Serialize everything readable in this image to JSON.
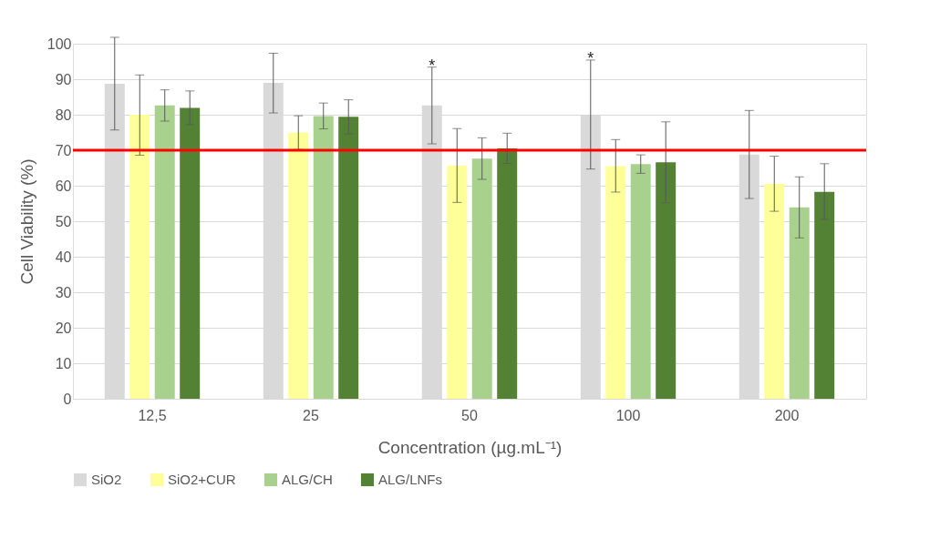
{
  "chart_data": {
    "type": "bar",
    "xlabel": "Concentration (µg.mL⁻¹)",
    "ylabel": "Cell Viability (%)",
    "categories": [
      "12,5",
      "25",
      "50",
      "100",
      "200"
    ],
    "series": [
      {
        "name": "SiO2",
        "color": "#d9d9d9",
        "values": [
          88.7,
          89,
          82.6,
          80,
          68.8
        ],
        "value_labels": [
          null,
          null,
          "*",
          "*",
          null
        ],
        "errors": [
          [
            75.7,
            101.8
          ],
          [
            80.5,
            97.3
          ],
          [
            71.8,
            93.4
          ],
          [
            64.7,
            95.4
          ],
          [
            56.4,
            81.2
          ]
        ]
      },
      {
        "name": "SiO2+CUR",
        "color": "#ffff99",
        "values": [
          80,
          75,
          65.7,
          65.5,
          60.5
        ],
        "errors": [
          [
            68.6,
            91.2
          ],
          [
            70.2,
            79.7
          ],
          [
            55.3,
            76.1
          ],
          [
            58.2,
            73
          ],
          [
            52.8,
            68.3
          ]
        ]
      },
      {
        "name": "ALG/CH",
        "color": "#a9d18e",
        "values": [
          82.6,
          79.6,
          67.6,
          66.1,
          53.9
        ],
        "errors": [
          [
            78.2,
            87
          ],
          [
            76,
            83.3
          ],
          [
            61.8,
            73.5
          ],
          [
            63.5,
            68.7
          ],
          [
            45.3,
            62.5
          ]
        ]
      },
      {
        "name": "ALG/LNFs",
        "color": "#548235",
        "values": [
          81.9,
          79.4,
          70.5,
          66.6,
          58.3
        ],
        "errors": [
          [
            77.2,
            86.7
          ],
          [
            74.6,
            84.2
          ],
          [
            66.3,
            74.8
          ],
          [
            55.2,
            78
          ],
          [
            50.5,
            66.2
          ]
        ]
      }
    ],
    "ylim": [
      0,
      100
    ],
    "yticks": [
      0,
      10,
      20,
      30,
      40,
      50,
      60,
      70,
      80,
      90,
      100
    ],
    "ref_lines": [
      {
        "axis": "y",
        "value": 70,
        "color": "#ff0000"
      }
    ],
    "grid": "y",
    "legend": "bottom"
  }
}
